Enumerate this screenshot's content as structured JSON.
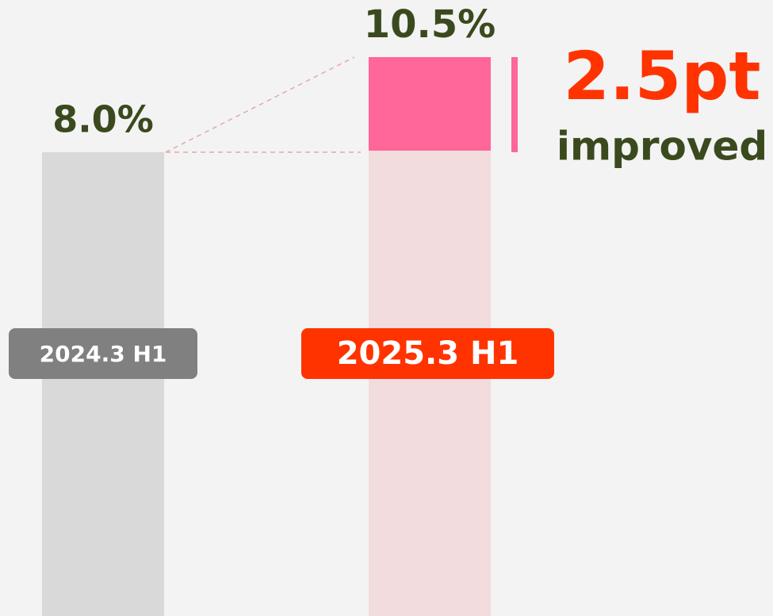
{
  "chart_data": {
    "type": "bar",
    "categories": [
      "2024.3 H1",
      "2025.3 H1"
    ],
    "values": [
      8.0,
      10.5
    ],
    "value_labels": [
      "8.0%",
      "10.5%"
    ],
    "colors": [
      "#d9d9d9",
      "#f2dcdd"
    ],
    "highlight_color": "#ff6699",
    "badge_colors": [
      "#808080",
      "#ff3300"
    ],
    "difference_label": "2.5pt",
    "difference_caption": "improved"
  }
}
